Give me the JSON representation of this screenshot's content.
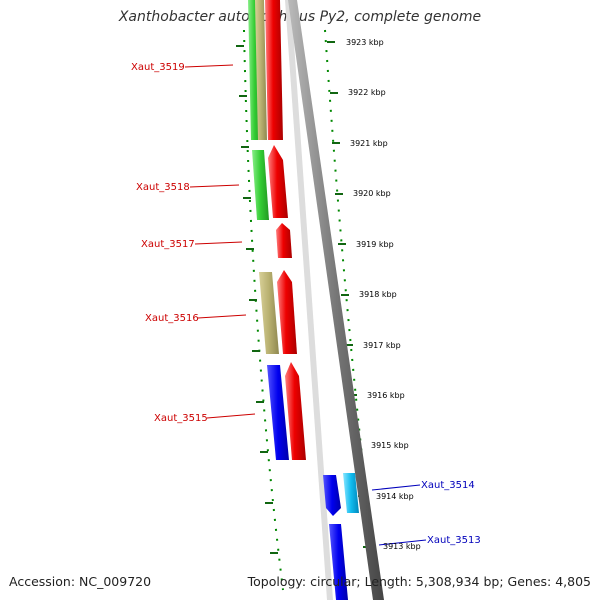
{
  "title": "Xanthobacter autotrophicus Py2, complete genome",
  "accession": "Accession: NC_009720",
  "summary": "Topology: circular; Length: 5,308,934 bp; Genes: 4,805",
  "scale_labels": [
    "3923 kbp",
    "3922 kbp",
    "3921 kbp",
    "3920 kbp",
    "3919 kbp",
    "3918 kbp",
    "3917 kbp",
    "3916 kbp",
    "3915 kbp",
    "3914 kbp",
    "3913 kbp"
  ],
  "genes": [
    {
      "name": "Xaut_3519",
      "color": "#cc0000"
    },
    {
      "name": "Xaut_3518",
      "color": "#cc0000"
    },
    {
      "name": "Xaut_3517",
      "color": "#cc0000"
    },
    {
      "name": "Xaut_3516",
      "color": "#cc0000"
    },
    {
      "name": "Xaut_3515",
      "color": "#cc0000"
    },
    {
      "name": "Xaut_3514",
      "color": "#0000bb"
    },
    {
      "name": "Xaut_3513",
      "color": "#0000bb"
    }
  ],
  "colors": {
    "forward_strand": "#ee0000",
    "reverse_strand_blue": "#0000ee",
    "reverse_strand_green": "#33cc33",
    "reverse_strand_olive": "#b8b070",
    "cyan": "#11bbee",
    "backbone": "#777777",
    "tick": "#116611",
    "dotted_guide": "#008800"
  }
}
